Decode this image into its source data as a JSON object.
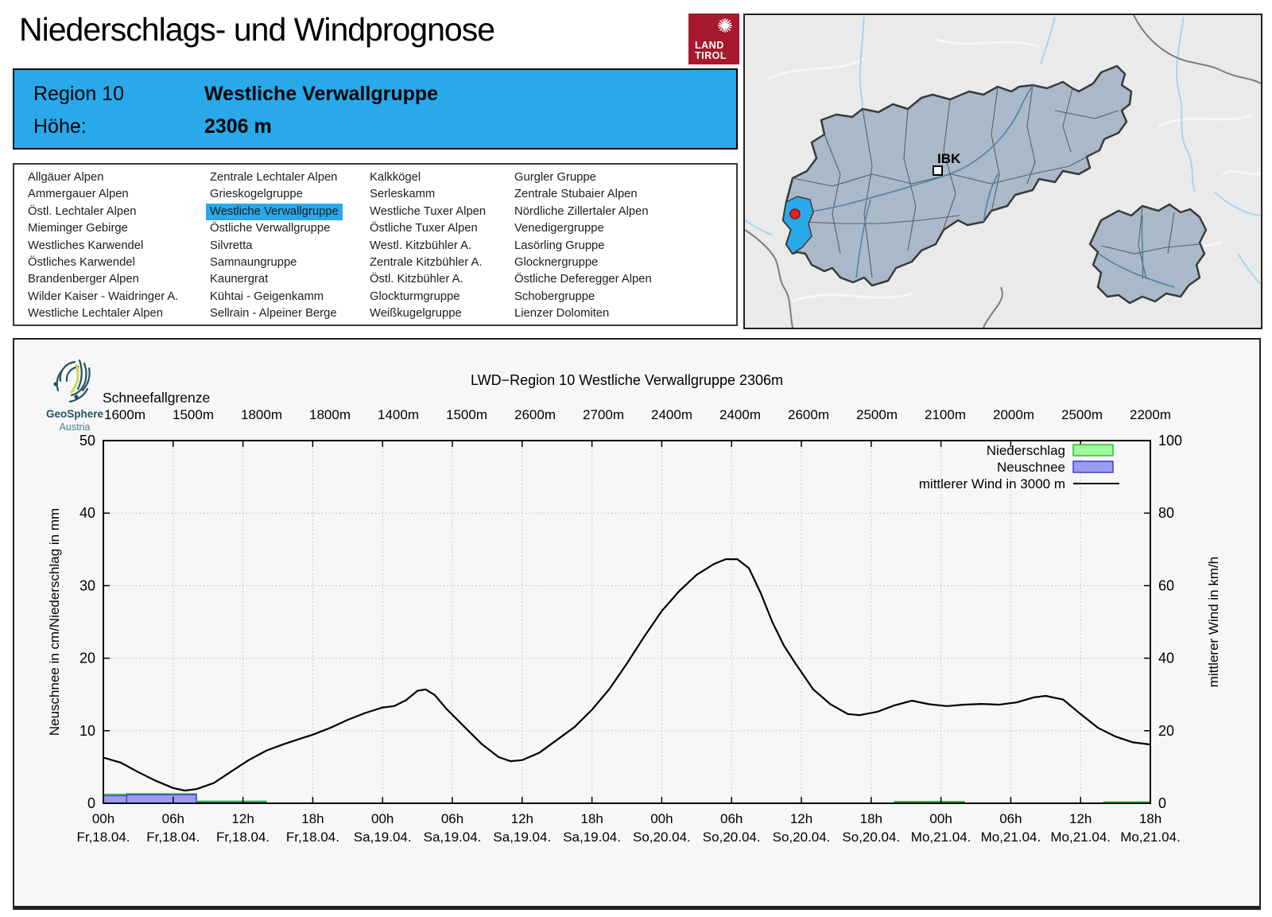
{
  "page": {
    "title": "Niederschlags- und Windprognose"
  },
  "tirol_logo": {
    "line1": "LAND",
    "line2": "TIROL",
    "color": "#a6192e"
  },
  "info_box": {
    "region_label": "Region 10",
    "region_name": "Westliche Verwallgruppe",
    "altitude_label": "Höhe:",
    "altitude_value": "2306 m",
    "bg_color": "#29a9ea"
  },
  "region_list": {
    "selected": "Westliche Verwallgruppe",
    "highlight_color": "#29a9ea",
    "columns": [
      [
        "Allgäuer Alpen",
        "Ammergauer Alpen",
        "Östl. Lechtaler Alpen",
        "Mieminger Gebirge",
        "Westliches Karwendel",
        "Östliches Karwendel",
        "Brandenberger Alpen",
        "Wilder Kaiser - Waidringer A.",
        "Westliche Lechtaler Alpen"
      ],
      [
        "Zentrale Lechtaler Alpen",
        "Grieskogelgruppe",
        "Westliche Verwallgruppe",
        "Östliche Verwallgruppe",
        "Silvretta",
        "Samnaungruppe",
        "Kaunergrat",
        "Kühtai - Geigenkamm",
        "Sellrain - Alpeiner Berge"
      ],
      [
        "Kalkkögel",
        "Serleskamm",
        "Westliche Tuxer Alpen",
        "Östliche Tuxer Alpen",
        "Westl. Kitzbühler A.",
        "Zentrale Kitzbühler A.",
        "Östl. Kitzbühler A.",
        "Glockturmgruppe",
        "Weißkugelgruppe"
      ],
      [
        "Gurgler Gruppe",
        "Zentrale Stubaier Alpen",
        "Nördliche Zillertaler Alpen",
        "Venedigergruppe",
        "Lasörling Gruppe",
        "Glocknergruppe",
        "Östliche Deferegger Alpen",
        "Schobergruppe",
        "Lienzer Dolomiten"
      ]
    ]
  },
  "map": {
    "label_ibk": "IBK",
    "selected_region_color": "#29a9ea",
    "marker_dot_color": "#e02424",
    "region_fill": "#a9b9c9"
  },
  "geosphere": {
    "line1": "GeoSphere",
    "line2": "Austria",
    "dark": "#265360",
    "accent": "#c5d94a"
  },
  "chart_data": {
    "type": "line+bar",
    "title": "LWD−Region 10 Westliche Verwallgruppe 2306m",
    "snowline_label": "Schneefallgrenze",
    "snowline_values": [
      "1600m",
      "1500m",
      "1800m",
      "1800m",
      "1400m",
      "1500m",
      "2600m",
      "2700m",
      "2400m",
      "2400m",
      "2600m",
      "2500m",
      "2100m",
      "2000m",
      "2500m",
      "2200m"
    ],
    "ylabel_left": "Neuschnee in cm/Niederschlag in mm",
    "ylabel_right": "mittlerer Wind in km/h",
    "ylim_left": [
      0,
      50
    ],
    "ylim_right": [
      0,
      100
    ],
    "yticks_left": [
      0,
      10,
      20,
      30,
      40,
      50
    ],
    "yticks_right": [
      0,
      20,
      40,
      60,
      80,
      100
    ],
    "x_hours_range": [
      0,
      90
    ],
    "grid": "dotted",
    "legend_position": "top-right",
    "x_ticks": [
      {
        "hour": 0,
        "time": "00h",
        "date": "Fr,18.04."
      },
      {
        "hour": 6,
        "time": "06h",
        "date": "Fr,18.04."
      },
      {
        "hour": 12,
        "time": "12h",
        "date": "Fr,18.04."
      },
      {
        "hour": 18,
        "time": "18h",
        "date": "Fr,18.04."
      },
      {
        "hour": 24,
        "time": "00h",
        "date": "Sa,19.04."
      },
      {
        "hour": 30,
        "time": "06h",
        "date": "Sa,19.04."
      },
      {
        "hour": 36,
        "time": "12h",
        "date": "Sa,19.04."
      },
      {
        "hour": 42,
        "time": "18h",
        "date": "Sa,19.04."
      },
      {
        "hour": 48,
        "time": "00h",
        "date": "So,20.04."
      },
      {
        "hour": 54,
        "time": "06h",
        "date": "So,20.04."
      },
      {
        "hour": 60,
        "time": "12h",
        "date": "So,20.04."
      },
      {
        "hour": 66,
        "time": "18h",
        "date": "So,20.04."
      },
      {
        "hour": 72,
        "time": "00h",
        "date": "Mo,21.04."
      },
      {
        "hour": 78,
        "time": "06h",
        "date": "Mo,21.04."
      },
      {
        "hour": 84,
        "time": "12h",
        "date": "Mo,21.04."
      },
      {
        "hour": 90,
        "time": "18h",
        "date": "Mo,21.04."
      }
    ],
    "legend": [
      {
        "label": "Niederschlag",
        "fill": "#9cfa9c",
        "border": "#2eb82e",
        "kind": "box"
      },
      {
        "label": "Neuschnee",
        "fill": "#9b9bf1",
        "border": "#3434c8",
        "kind": "box"
      },
      {
        "label": "mittlerer Wind in 3000 m",
        "color": "#000000",
        "kind": "line"
      }
    ],
    "bars_unit_note": "Niederschlag in mm (green), Neuschnee in cm (blue), per time period",
    "bars": [
      {
        "start_h": 0,
        "end_h": 2,
        "niederschlag_mm": 1.25,
        "neuschnee_cm": 1.05
      },
      {
        "start_h": 2,
        "end_h": 8,
        "niederschlag_mm": 1.3,
        "neuschnee_cm": 1.2
      },
      {
        "start_h": 8,
        "end_h": 14,
        "niederschlag_mm": 0.3,
        "neuschnee_cm": 0.12
      },
      {
        "start_h": 68,
        "end_h": 74,
        "niederschlag_mm": 0.25,
        "neuschnee_cm": 0.08
      },
      {
        "start_h": 86,
        "end_h": 90,
        "niederschlag_mm": 0.2,
        "neuschnee_cm": 0.02
      }
    ],
    "wind_series": {
      "name": "mittlerer Wind in 3000 m",
      "units": "km/h",
      "points": [
        [
          0,
          12.6
        ],
        [
          1.5,
          11.2
        ],
        [
          3,
          8.6
        ],
        [
          4.5,
          6.2
        ],
        [
          6,
          4.2
        ],
        [
          7,
          3.5
        ],
        [
          8,
          3.9
        ],
        [
          9.5,
          5.6
        ],
        [
          11,
          8.8
        ],
        [
          12.5,
          11.9
        ],
        [
          14,
          14.5
        ],
        [
          15.5,
          16.3
        ],
        [
          17,
          17.9
        ],
        [
          18,
          18.9
        ],
        [
          19.5,
          20.8
        ],
        [
          21,
          23.0
        ],
        [
          22.5,
          24.9
        ],
        [
          24,
          26.4
        ],
        [
          25,
          26.8
        ],
        [
          26,
          28.4
        ],
        [
          27,
          31.0
        ],
        [
          27.7,
          31.4
        ],
        [
          28.5,
          29.8
        ],
        [
          29.5,
          26.0
        ],
        [
          31,
          21.2
        ],
        [
          32.5,
          16.4
        ],
        [
          34,
          12.7
        ],
        [
          35,
          11.6
        ],
        [
          36,
          11.9
        ],
        [
          37.5,
          14.0
        ],
        [
          39,
          17.5
        ],
        [
          40.5,
          21.0
        ],
        [
          42,
          25.8
        ],
        [
          43.5,
          31.5
        ],
        [
          45,
          38.5
        ],
        [
          46.5,
          46.0
        ],
        [
          48,
          53.0
        ],
        [
          49.5,
          58.5
        ],
        [
          51,
          63.0
        ],
        [
          52.5,
          66.0
        ],
        [
          53.5,
          67.3
        ],
        [
          54.5,
          67.3
        ],
        [
          55.5,
          64.8
        ],
        [
          56.5,
          58.0
        ],
        [
          57.5,
          50.0
        ],
        [
          58.5,
          43.5
        ],
        [
          59.5,
          38.5
        ],
        [
          61,
          31.5
        ],
        [
          62.5,
          27.3
        ],
        [
          64,
          24.6
        ],
        [
          65,
          24.3
        ],
        [
          66.5,
          25.2
        ],
        [
          68,
          27.0
        ],
        [
          69.5,
          28.3
        ],
        [
          71,
          27.3
        ],
        [
          72.5,
          26.8
        ],
        [
          74,
          27.2
        ],
        [
          75.5,
          27.4
        ],
        [
          77,
          27.2
        ],
        [
          78.5,
          27.8
        ],
        [
          80,
          29.2
        ],
        [
          81,
          29.6
        ],
        [
          82.5,
          28.6
        ],
        [
          84,
          24.6
        ],
        [
          85.5,
          20.8
        ],
        [
          87,
          18.4
        ],
        [
          88.5,
          16.8
        ],
        [
          90,
          16.2
        ]
      ]
    }
  }
}
